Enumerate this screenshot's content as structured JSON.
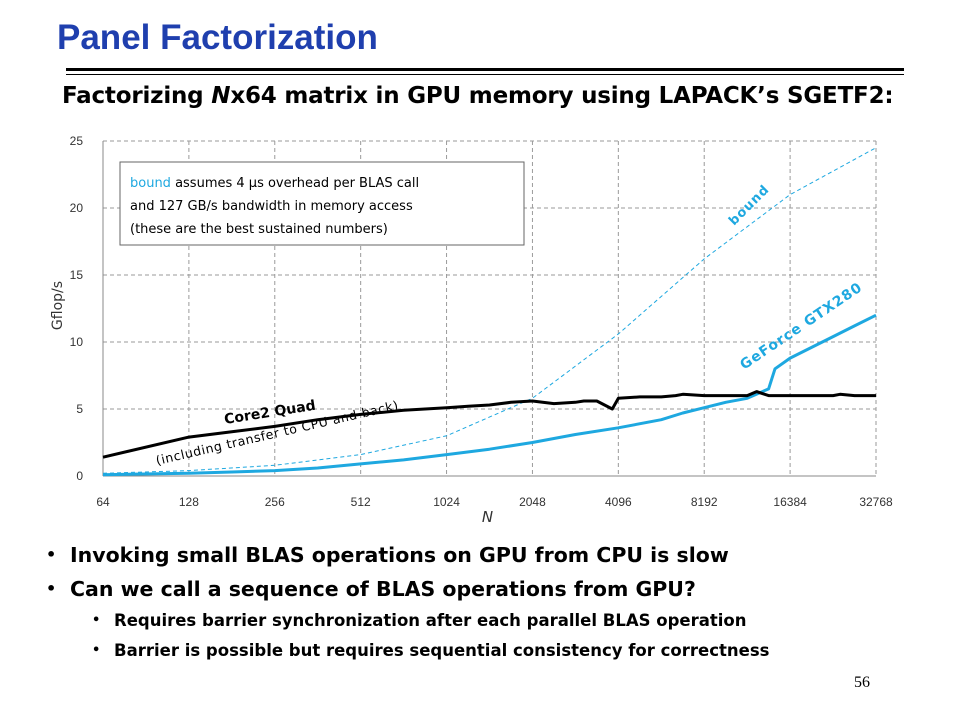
{
  "slide": {
    "title": "Panel Factorization",
    "subtitle_pre": "Factorizing ",
    "subtitle_italic": "N",
    "subtitle_post": "x64 matrix in GPU memory using LAPACK’s SGETF2:",
    "page_number": "56"
  },
  "bullets": [
    {
      "level": 1,
      "text": "Invoking small BLAS operations on GPU from CPU is slow"
    },
    {
      "level": 1,
      "text": "Can we call a sequence of BLAS operations from GPU?"
    },
    {
      "level": 2,
      "text": "Requires barrier synchronization after each parallel BLAS operation"
    },
    {
      "level": 2,
      "text": "Barrier is possible but requires sequential consistency for correctness"
    }
  ],
  "chart_data": {
    "type": "line",
    "xlabel": "N",
    "ylabel": "Gflop/s",
    "x_scale": "log2",
    "xlim": [
      64,
      32768
    ],
    "ylim": [
      0,
      25
    ],
    "x_ticks": [
      "64",
      "128",
      "256",
      "512",
      "1024",
      "2048",
      "4096",
      "8192",
      "16384",
      "32768"
    ],
    "y_ticks": [
      "0",
      "5",
      "10",
      "15",
      "20",
      "25"
    ],
    "grid": true,
    "annotation": {
      "lead": "bound",
      "line1_rest": " assumes 4 µs overhead per BLAS call",
      "line2": "and 127 GB/s bandwidth in memory access",
      "line3": "(these are the best sustained numbers)"
    },
    "label_note": "(including transfer to CPU and back)",
    "colors": {
      "core2": "#000000",
      "gtx": "#1ea8e0",
      "bound": "#1ea8e0",
      "grid": "#9a9a9a"
    },
    "series": [
      {
        "name": "Core2 Quad",
        "style": "solid",
        "x": [
          64,
          128,
          181,
          256,
          362,
          512,
          724,
          1024,
          1218,
          1448,
          1722,
          2048,
          2435,
          2896,
          3100,
          3444,
          3900,
          4096,
          4871,
          5793,
          6500,
          6889,
          8192,
          9742,
          11585,
          12500,
          13777,
          16384,
          19484,
          23170,
          24500,
          27554,
          32768
        ],
        "y": [
          1.4,
          2.9,
          3.3,
          3.7,
          4.2,
          4.6,
          4.9,
          5.1,
          5.2,
          5.3,
          5.5,
          5.6,
          5.4,
          5.5,
          5.6,
          5.6,
          5.0,
          5.8,
          5.9,
          5.9,
          6.0,
          6.1,
          6.0,
          6.0,
          6.0,
          6.3,
          6.0,
          6.0,
          6.0,
          6.0,
          6.1,
          6.0,
          6.0
        ]
      },
      {
        "name": "GeForce GTX280",
        "style": "solid",
        "x": [
          64,
          128,
          181,
          256,
          362,
          512,
          724,
          1024,
          1448,
          2048,
          2896,
          4096,
          5793,
          6889,
          8192,
          9742,
          11585,
          13777,
          14500,
          16384,
          19484,
          23170,
          27554,
          32768
        ],
        "y": [
          0.1,
          0.2,
          0.3,
          0.4,
          0.6,
          0.9,
          1.2,
          1.6,
          2.0,
          2.5,
          3.1,
          3.6,
          4.2,
          4.7,
          5.1,
          5.5,
          5.8,
          6.5,
          8.0,
          8.8,
          9.6,
          10.4,
          11.2,
          12.0
        ]
      },
      {
        "name": "bound",
        "style": "dashed",
        "x": [
          64,
          128,
          256,
          512,
          1024,
          2048,
          4096,
          8192,
          16384,
          32768
        ],
        "y": [
          0.2,
          0.4,
          0.8,
          1.6,
          3.0,
          5.8,
          10.6,
          16.2,
          21.0,
          24.5
        ]
      }
    ]
  }
}
